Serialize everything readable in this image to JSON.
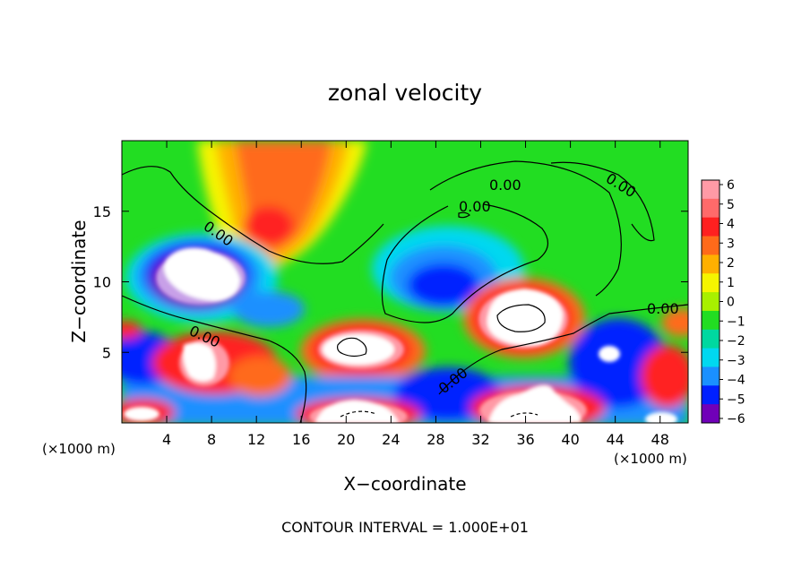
{
  "chart_data": {
    "type": "heatmap",
    "title": "zonal velocity",
    "xlabel": "X−coordinate",
    "ylabel": "Z−coordinate",
    "x_unit": "(×1000 m)",
    "y_unit": "(×1000 m)",
    "xlim": [
      0,
      50.5
    ],
    "ylim": [
      0,
      20
    ],
    "x_ticks": [
      4,
      8,
      12,
      16,
      20,
      24,
      28,
      32,
      36,
      40,
      44,
      48
    ],
    "y_ticks": [
      5,
      10,
      15
    ],
    "colorbar": {
      "labels": [
        "6",
        "5",
        "4",
        "3",
        "2",
        "1",
        "0",
        "−1",
        "−2",
        "−3",
        "−4",
        "−5",
        "−6"
      ],
      "colors": [
        "#ff9aa6",
        "#ff6a6a",
        "#ff2020",
        "#ff6a1a",
        "#ffb000",
        "#f5f500",
        "#a8f000",
        "#22dd22",
        "#00d8a0",
        "#00d8f0",
        "#1a90ff",
        "#0020ff",
        "#7000b8"
      ]
    },
    "contour_labels": [
      "0.00",
      "0.00",
      "0.00",
      "0.00",
      "0.00",
      "0.00",
      "0.00",
      "0.00"
    ],
    "footer": "CONTOUR INTERVAL = 1.000E+01",
    "features": [
      {
        "x": 6.5,
        "z": 11,
        "value": -9
      },
      {
        "x": 13,
        "z": 16,
        "value": 5
      },
      {
        "x": 13,
        "z": 18,
        "value": 3.5
      },
      {
        "x": 21,
        "z": 5,
        "value": 8
      },
      {
        "x": 35,
        "z": 7.5,
        "value": 9
      },
      {
        "x": 29,
        "z": 10.5,
        "value": -5
      },
      {
        "x": 43,
        "z": 5,
        "value": -5
      },
      {
        "x": 20,
        "z": 0.5,
        "value": 9
      },
      {
        "x": 36,
        "z": 1.5,
        "value": 8
      },
      {
        "x": 3,
        "z": 3,
        "value": -4
      },
      {
        "x": 5,
        "z": 0.5,
        "value": 5
      },
      {
        "x": 9,
        "z": 4,
        "value": 6
      },
      {
        "x": 46,
        "z": 2,
        "value": 4
      }
    ]
  }
}
